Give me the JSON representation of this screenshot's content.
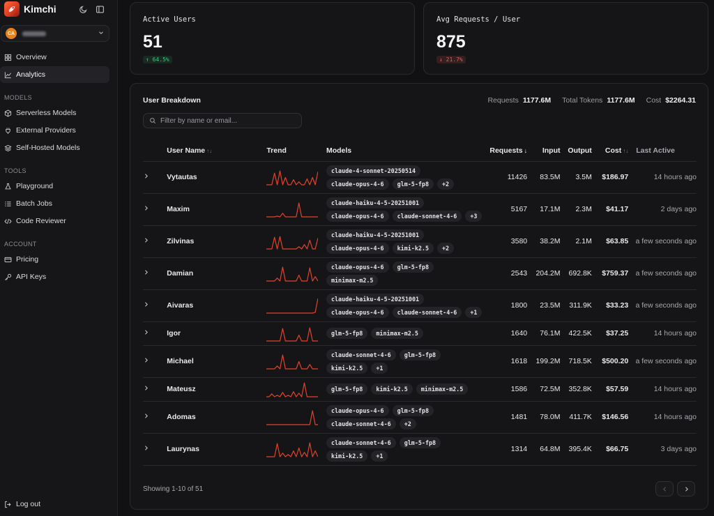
{
  "brand": {
    "name": "Kimchi"
  },
  "org": {
    "initials": "CA"
  },
  "nav": {
    "overview": "Overview",
    "analytics": "Analytics",
    "models_title": "MODELS",
    "serverless": "Serverless Models",
    "external": "External Providers",
    "selfhosted": "Self-Hosted Models",
    "tools_title": "TOOLS",
    "playground": "Playground",
    "batch": "Batch Jobs",
    "reviewer": "Code Reviewer",
    "account_title": "ACCOUNT",
    "pricing": "Pricing",
    "apikeys": "API Keys",
    "logout": "Log out"
  },
  "stats": {
    "active_users": {
      "label": "Active Users",
      "value": "51",
      "delta": "↑ 64.5%"
    },
    "avg_requests": {
      "label": "Avg Requests / User",
      "value": "875",
      "delta": "↓ 21.7%"
    }
  },
  "breakdown": {
    "title": "User Breakdown",
    "requests_label": "Requests",
    "requests_value": "1177.6M",
    "tokens_label": "Total Tokens",
    "tokens_value": "1177.6M",
    "cost_label": "Cost",
    "cost_value": "$2264.31",
    "search_placeholder": "Filter by name or email...",
    "columns": {
      "user": "User Name",
      "trend": "Trend",
      "models": "Models",
      "requests": "Requests",
      "input": "Input",
      "output": "Output",
      "cost": "Cost",
      "last": "Last Active"
    },
    "rows": [
      {
        "name": "Vytautas",
        "models": [
          "claude-4-sonnet-20250514",
          "claude-opus-4-6",
          "glm-5-fp8",
          "+2"
        ],
        "requests": "11426",
        "input": "83.5M",
        "output": "3.5M",
        "cost": "$186.97",
        "last": "14 hours ago",
        "trend": [
          0,
          0,
          0,
          0.8,
          0,
          0.95,
          0,
          0.5,
          0,
          0,
          0.35,
          0,
          0.2,
          0,
          0,
          0.4,
          0,
          0.5,
          0,
          0.9
        ]
      },
      {
        "name": "Maxim",
        "models": [
          "claude-haiku-4-5-20251001",
          "claude-opus-4-6",
          "claude-sonnet-4-6",
          "+3"
        ],
        "requests": "5167",
        "input": "17.1M",
        "output": "2.3M",
        "cost": "$41.17",
        "last": "2 days ago",
        "trend": [
          0,
          0,
          0,
          0,
          0.05,
          0,
          0.25,
          0,
          0,
          0,
          0,
          0,
          0.95,
          0,
          0,
          0,
          0,
          0,
          0,
          0
        ]
      },
      {
        "name": "Zilvinas",
        "models": [
          "claude-haiku-4-5-20251001",
          "claude-opus-4-6",
          "kimi-k2.5",
          "+2"
        ],
        "requests": "3580",
        "input": "38.2M",
        "output": "2.1M",
        "cost": "$63.85",
        "last": "a few seconds ago",
        "trend": [
          0,
          0,
          0,
          0.8,
          0,
          0.85,
          0,
          0,
          0,
          0,
          0,
          0,
          0.15,
          0,
          0.3,
          0,
          0.6,
          0,
          0,
          0.75
        ]
      },
      {
        "name": "Damian",
        "models": [
          "claude-opus-4-6",
          "glm-5-fp8",
          "minimax-m2.5"
        ],
        "requests": "2543",
        "input": "204.2M",
        "output": "692.8K",
        "cost": "$759.37",
        "last": "a few seconds ago",
        "trend": [
          0,
          0,
          0,
          0,
          0.2,
          0,
          0.95,
          0,
          0,
          0,
          0,
          0,
          0.4,
          0,
          0,
          0,
          0.9,
          0,
          0.3,
          0
        ]
      },
      {
        "name": "Aivaras",
        "models": [
          "claude-haiku-4-5-20251001",
          "claude-opus-4-6",
          "claude-sonnet-4-6",
          "+1"
        ],
        "requests": "1800",
        "input": "23.5M",
        "output": "311.9K",
        "cost": "$33.23",
        "last": "a few seconds ago",
        "trend": [
          0,
          0,
          0,
          0,
          0,
          0,
          0,
          0,
          0,
          0,
          0,
          0,
          0,
          0,
          0,
          0,
          0,
          0,
          0.05,
          1
        ]
      },
      {
        "name": "Igor",
        "models": [
          "glm-5-fp8",
          "minimax-m2.5"
        ],
        "requests": "1640",
        "input": "76.1M",
        "output": "422.5K",
        "cost": "$37.25",
        "last": "14 hours ago",
        "trend": [
          0,
          0,
          0,
          0,
          0,
          0,
          0.85,
          0,
          0,
          0,
          0,
          0,
          0.4,
          0,
          0,
          0,
          0.9,
          0,
          0,
          0
        ]
      },
      {
        "name": "Michael",
        "models": [
          "claude-sonnet-4-6",
          "glm-5-fp8",
          "kimi-k2.5",
          "+1"
        ],
        "requests": "1618",
        "input": "199.2M",
        "output": "718.5K",
        "cost": "$500.20",
        "last": "a few seconds ago",
        "trend": [
          0,
          0,
          0,
          0,
          0.2,
          0,
          0.95,
          0,
          0,
          0,
          0,
          0,
          0.5,
          0,
          0,
          0,
          0.3,
          0,
          0,
          0
        ]
      },
      {
        "name": "Mateusz",
        "models": [
          "glm-5-fp8",
          "kimi-k2.5",
          "minimax-m2.5"
        ],
        "requests": "1586",
        "input": "72.5M",
        "output": "352.8K",
        "cost": "$57.59",
        "last": "14 hours ago",
        "trend": [
          0,
          0,
          0.2,
          0,
          0.1,
          0,
          0.3,
          0,
          0.1,
          0,
          0.35,
          0,
          0.25,
          0,
          0.95,
          0,
          0,
          0,
          0,
          0
        ]
      },
      {
        "name": "Adomas",
        "models": [
          "claude-opus-4-6",
          "glm-5-fp8",
          "claude-sonnet-4-6",
          "+2"
        ],
        "requests": "1481",
        "input": "78.0M",
        "output": "411.7K",
        "cost": "$146.56",
        "last": "14 hours ago",
        "trend": [
          0,
          0,
          0,
          0,
          0,
          0,
          0,
          0,
          0,
          0,
          0,
          0,
          0,
          0,
          0,
          0,
          0,
          0.95,
          0,
          0
        ]
      },
      {
        "name": "Laurynas",
        "models": [
          "claude-sonnet-4-6",
          "glm-5-fp8",
          "kimi-k2.5",
          "+1"
        ],
        "requests": "1314",
        "input": "64.8M",
        "output": "395.4K",
        "cost": "$66.75",
        "last": "3 days ago",
        "trend": [
          0,
          0,
          0,
          0,
          0.9,
          0,
          0.25,
          0,
          0.15,
          0,
          0.4,
          0,
          0.6,
          0,
          0.3,
          0,
          0.95,
          0,
          0.4,
          0
        ]
      }
    ],
    "showing": "Showing 1-10 of 51"
  },
  "colors": {
    "accent": "#e0432b",
    "up": "#3ec47a",
    "down": "#ef5a5a"
  }
}
